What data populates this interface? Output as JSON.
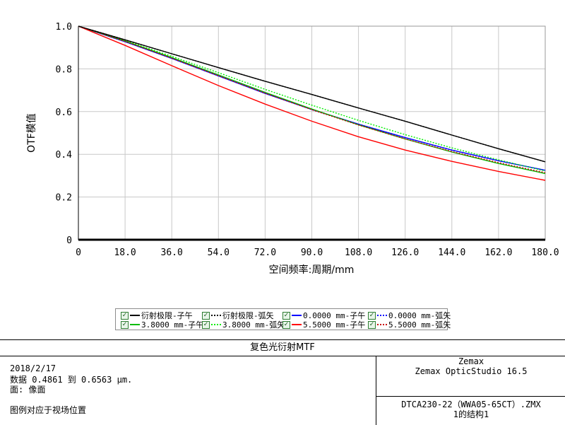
{
  "chart_data": {
    "type": "line",
    "xlabel": "空间频率:周期/mm",
    "ylabel": "OTF模值",
    "xlim": [
      0,
      180
    ],
    "ylim": [
      0,
      1
    ],
    "grid": true,
    "x_ticks": [
      "0",
      "18.0",
      "36.0",
      "54.0",
      "72.0",
      "90.0",
      "108.0",
      "126.0",
      "144.0",
      "162.0",
      "180.0"
    ],
    "y_ticks": [
      "0",
      "0.2",
      "0.4",
      "0.6",
      "0.8",
      "1.0"
    ],
    "x": [
      0,
      18,
      36,
      54,
      72,
      90,
      108,
      126,
      144,
      162,
      180
    ],
    "series": [
      {
        "name": "衍射极限-子午",
        "color": "#000000",
        "dash": false,
        "values": [
          1.0,
          0.936,
          0.871,
          0.806,
          0.742,
          0.68,
          0.617,
          0.555,
          0.49,
          0.426,
          0.365
        ]
      },
      {
        "name": "衍射极限-弧矢",
        "color": "#000000",
        "dash": true,
        "values": [
          1.0,
          0.936,
          0.871,
          0.806,
          0.742,
          0.68,
          0.617,
          0.555,
          0.49,
          0.426,
          0.365
        ]
      },
      {
        "name": "0.0000 mm-子午",
        "color": "#0000ff",
        "dash": false,
        "values": [
          1.0,
          0.927,
          0.849,
          0.767,
          0.685,
          0.61,
          0.541,
          0.478,
          0.42,
          0.37,
          0.325
        ]
      },
      {
        "name": "0.0000 mm-弧矢",
        "color": "#0000ff",
        "dash": true,
        "values": [
          1.0,
          0.927,
          0.849,
          0.767,
          0.685,
          0.61,
          0.541,
          0.478,
          0.42,
          0.37,
          0.325
        ]
      },
      {
        "name": "3.8000 mm-子午",
        "color": "#00bb00",
        "dash": false,
        "values": [
          1.0,
          0.93,
          0.853,
          0.772,
          0.69,
          0.612,
          0.538,
          0.472,
          0.411,
          0.357,
          0.31
        ]
      },
      {
        "name": "3.8000 mm-弧矢",
        "color": "#00ee00",
        "dash": true,
        "values": [
          1.0,
          0.932,
          0.859,
          0.782,
          0.704,
          0.63,
          0.559,
          0.492,
          0.43,
          0.374,
          0.322
        ]
      },
      {
        "name": "5.5000 mm-子午",
        "color": "#ff0000",
        "dash": false,
        "values": [
          1.0,
          0.91,
          0.815,
          0.722,
          0.635,
          0.555,
          0.482,
          0.42,
          0.367,
          0.32,
          0.278
        ]
      },
      {
        "name": "5.5000 mm-弧矢",
        "color": "#cc0000",
        "dash": true,
        "values": [
          1.0,
          0.929,
          0.85,
          0.768,
          0.686,
          0.609,
          0.537,
          0.472,
          0.413,
          0.361,
          0.314
        ]
      }
    ]
  },
  "info": {
    "title": "复色光衍射MTF",
    "date": "2018/2/17",
    "wavelength": "数据 0.4861 到 0.6563 µm.",
    "surface": "面: 像面",
    "legend_note": "图例对应于视场位置",
    "brand": "Zemax",
    "product": "Zemax OpticStudio 16.5",
    "filename": "DTCA230-22（WWA05-65CT）.ZMX",
    "config": "1的结构1"
  }
}
